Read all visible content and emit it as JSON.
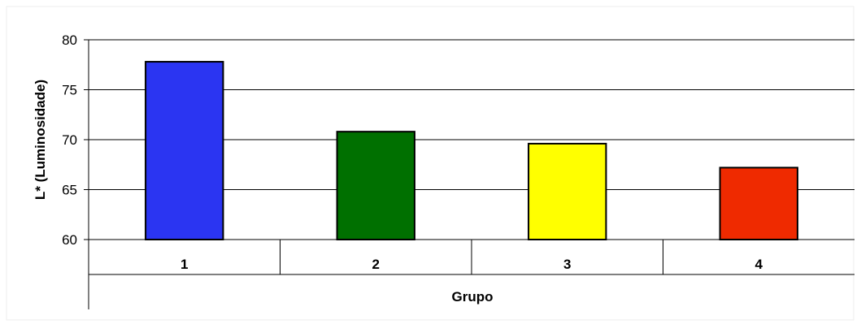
{
  "chart_data": {
    "type": "bar",
    "title": "",
    "xlabel": "Grupo",
    "ylabel": "L* (Luminosidade)",
    "categories": [
      "1",
      "2",
      "3",
      "4"
    ],
    "values": [
      77.8,
      70.8,
      69.6,
      67.2
    ],
    "ylim": [
      60,
      80
    ],
    "yticks": [
      "60",
      "65",
      "70",
      "75",
      "80"
    ],
    "grid": true,
    "legend": "none",
    "colors": [
      "#2b35f2",
      "#007000",
      "#ffff00",
      "#ef2a00"
    ]
  }
}
